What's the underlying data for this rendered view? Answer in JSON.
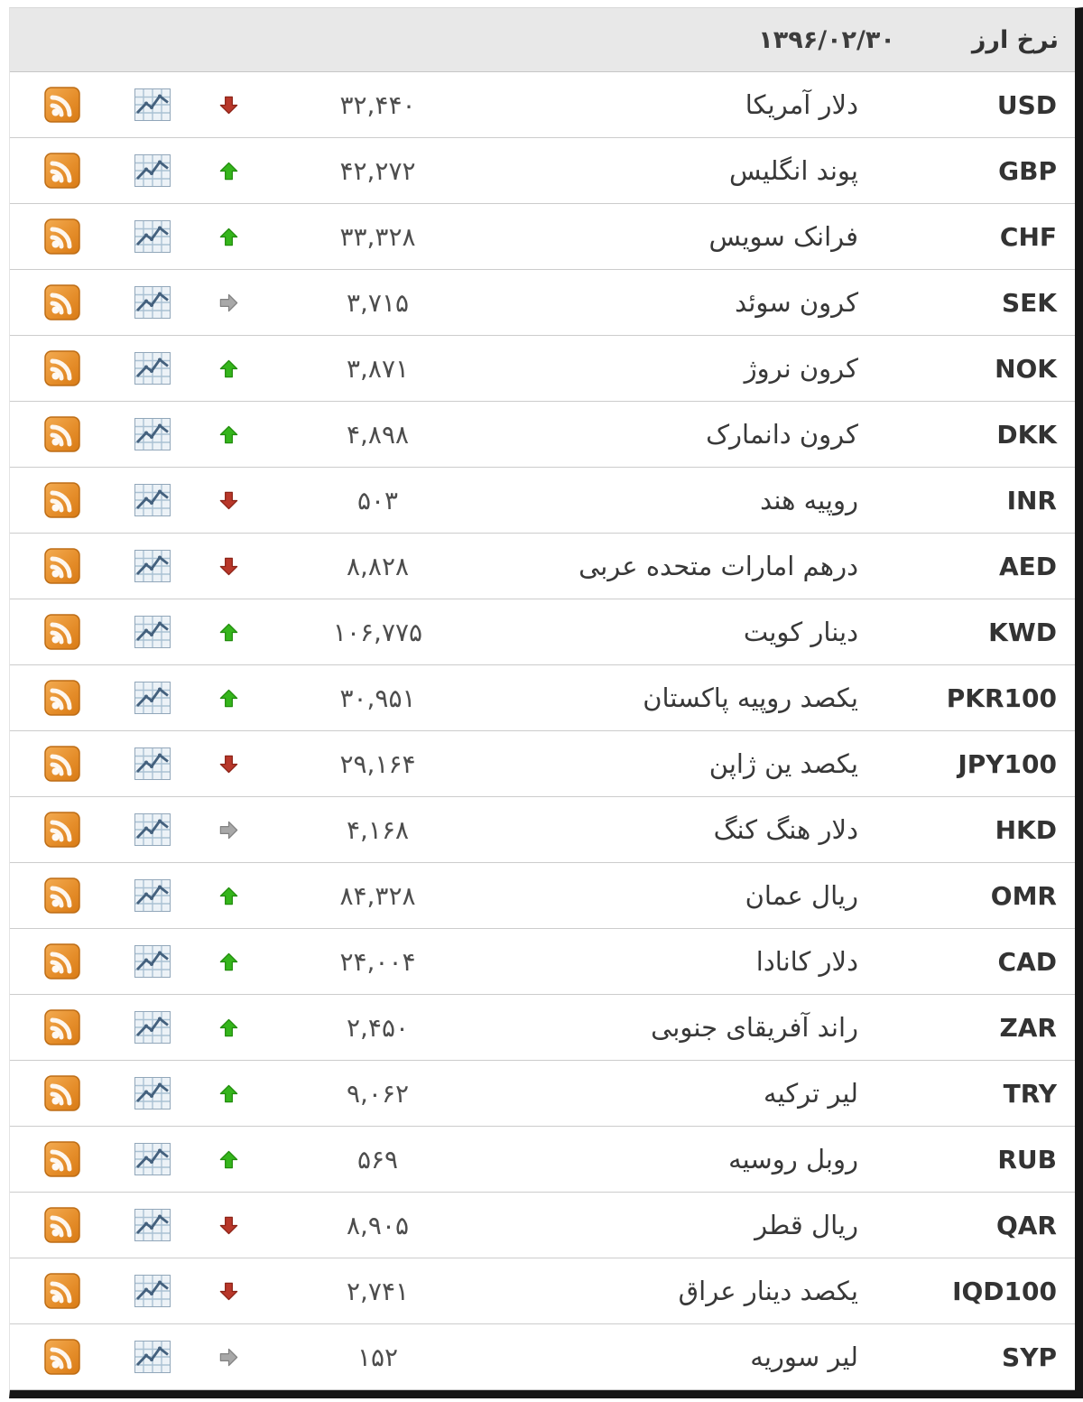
{
  "header": {
    "title": "نرخ ارز",
    "date": "۱۳۹۶/۰۲/۳۰"
  },
  "colors": {
    "up": "#35b51c",
    "up_stroke": "#218c0c",
    "down": "#b8372a",
    "down_stroke": "#8c2317",
    "flat": "#a8a8a8",
    "flat_stroke": "#828282",
    "header_bg": "#e8e8e8"
  },
  "icons": {
    "rss": "rss-icon",
    "chart": "line-chart-icon",
    "up": "arrow-up-icon",
    "down": "arrow-down-icon",
    "flat": "arrow-right-icon"
  },
  "rows": [
    {
      "code": "USD",
      "name": "دلار آمریکا",
      "value": "۳۲,۴۴۰",
      "trend": "down"
    },
    {
      "code": "GBP",
      "name": "پوند انگلیس",
      "value": "۴۲,۲۷۲",
      "trend": "up"
    },
    {
      "code": "CHF",
      "name": "فرانک سویس",
      "value": "۳۳,۳۲۸",
      "trend": "up"
    },
    {
      "code": "SEK",
      "name": "کرون سوئد",
      "value": "۳,۷۱۵",
      "trend": "flat"
    },
    {
      "code": "NOK",
      "name": "کرون نروژ",
      "value": "۳,۸۷۱",
      "trend": "up"
    },
    {
      "code": "DKK",
      "name": "کرون دانمارک",
      "value": "۴,۸۹۸",
      "trend": "up"
    },
    {
      "code": "INR",
      "name": "روپیه هند",
      "value": "۵۰۳",
      "trend": "down"
    },
    {
      "code": "AED",
      "name": "درهم امارات متحده عربی",
      "value": "۸,۸۲۸",
      "trend": "down"
    },
    {
      "code": "KWD",
      "name": "دینار کویت",
      "value": "۱۰۶,۷۷۵",
      "trend": "up"
    },
    {
      "code": "PKR100",
      "name": "یکصد روپیه پاکستان",
      "value": "۳۰,۹۵۱",
      "trend": "up"
    },
    {
      "code": "JPY100",
      "name": "یکصد ین ژاپن",
      "value": "۲۹,۱۶۴",
      "trend": "down"
    },
    {
      "code": "HKD",
      "name": "دلار هنگ کنگ",
      "value": "۴,۱۶۸",
      "trend": "flat"
    },
    {
      "code": "OMR",
      "name": "ریال عمان",
      "value": "۸۴,۳۲۸",
      "trend": "up"
    },
    {
      "code": "CAD",
      "name": "دلار کانادا",
      "value": "۲۴,۰۰۴",
      "trend": "up"
    },
    {
      "code": "ZAR",
      "name": "راند آفریقای جنوبی",
      "value": "۲,۴۵۰",
      "trend": "up"
    },
    {
      "code": "TRY",
      "name": "لیر ترکیه",
      "value": "۹,۰۶۲",
      "trend": "up"
    },
    {
      "code": "RUB",
      "name": "روبل روسیه",
      "value": "۵۶۹",
      "trend": "up"
    },
    {
      "code": "QAR",
      "name": "ریال قطر",
      "value": "۸,۹۰۵",
      "trend": "down"
    },
    {
      "code": "IQD100",
      "name": "یکصد دینار عراق",
      "value": "۲,۷۴۱",
      "trend": "down"
    },
    {
      "code": "SYP",
      "name": "لیر سوریه",
      "value": "۱۵۲",
      "trend": "flat"
    }
  ]
}
